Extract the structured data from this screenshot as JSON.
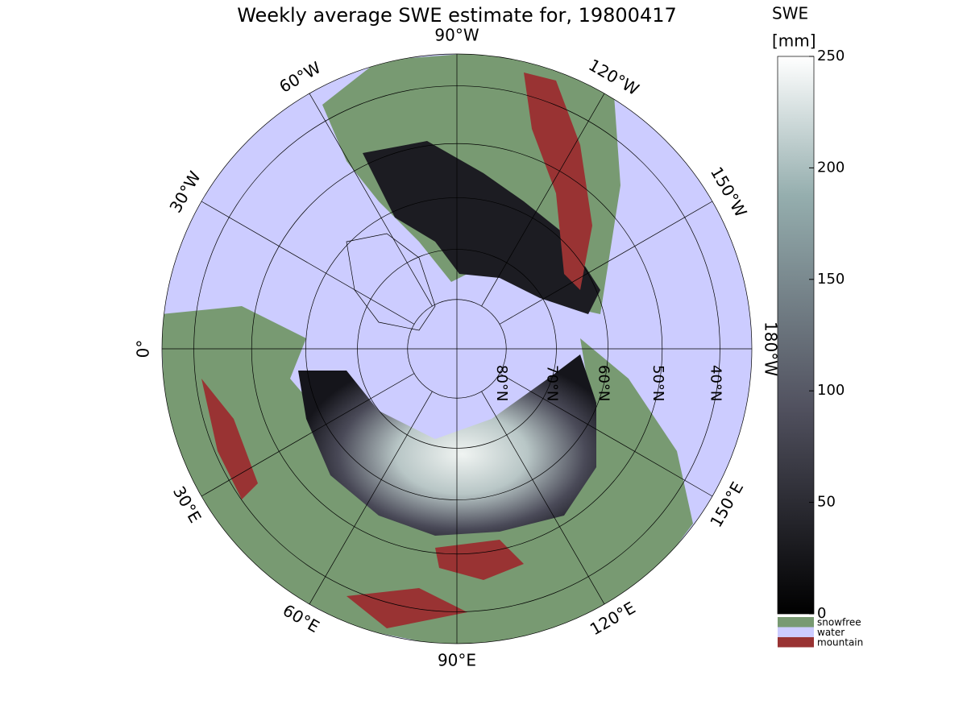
{
  "map": {
    "title": "Weekly average SWE estimate for, 19800417",
    "longitudes": [
      {
        "value": -90,
        "label": "90°W"
      },
      {
        "value": -120,
        "label": "120°W"
      },
      {
        "value": -150,
        "label": "150°W"
      },
      {
        "value": 180,
        "label": "180°W"
      },
      {
        "value": 150,
        "label": "150°E"
      },
      {
        "value": 120,
        "label": "120°E"
      },
      {
        "value": 90,
        "label": "90°E"
      },
      {
        "value": 60,
        "label": "60°E"
      },
      {
        "value": 30,
        "label": "30°E"
      },
      {
        "value": 0,
        "label": "0°"
      },
      {
        "value": -30,
        "label": "30°W"
      },
      {
        "value": -60,
        "label": "60°W"
      }
    ],
    "latitudes": [
      {
        "value": 80,
        "label": "80°N"
      },
      {
        "value": 70,
        "label": "70°N"
      },
      {
        "value": 60,
        "label": "60°N"
      },
      {
        "value": 50,
        "label": "50°N"
      },
      {
        "value": 40,
        "label": "40°N"
      }
    ],
    "colorbar": {
      "label_line1": "SWE",
      "label_line2": "[mm]",
      "lim": [
        0,
        250
      ],
      "ticks": [
        0,
        50,
        100,
        150,
        200,
        250
      ]
    },
    "legend": [
      {
        "name": "snowfree",
        "color": "#789a72"
      },
      {
        "name": "water",
        "color": "#ccccff"
      },
      {
        "name": "mountain",
        "color": "#993333"
      }
    ]
  }
}
